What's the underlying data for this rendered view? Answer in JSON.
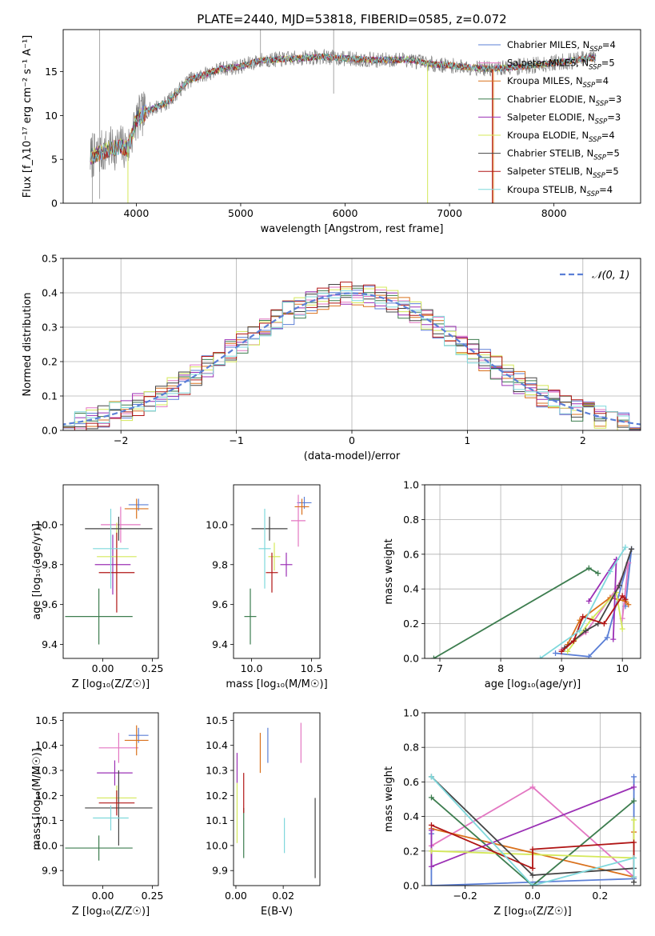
{
  "figure_title": "PLATE=2440, MJD=53818, FIBERID=0585, z=0.072",
  "colors": {
    "chabrier_miles": "#5b7fd6",
    "salpeter_miles": "#e377c2",
    "kroupa_miles": "#d9711c",
    "chabrier_elodie": "#3d7d4f",
    "salpeter_elodie": "#9b30b5",
    "kroupa_elodie": "#d4e85a",
    "chabrier_stelib": "#444444",
    "salpeter_stelib": "#b01515",
    "kroupa_stelib": "#7fd8dc",
    "normal_curve": "#5b7fd6"
  },
  "chart_data": [
    {
      "id": "spectrum",
      "type": "line",
      "xlabel": "wavelength [Angstrom, rest frame]",
      "ylabel": "Flux [f_λ10⁻¹⁷ erg cm⁻² s⁻¹ A⁻¹]",
      "xlim": [
        3300,
        8830
      ],
      "ylim": [
        0,
        19.8
      ],
      "xticks": [
        "4000",
        "5000",
        "6000",
        "7000",
        "8000"
      ],
      "yticks": [
        "0",
        "5",
        "10",
        "15"
      ],
      "legend_position": "right",
      "legend": [
        {
          "pre": "Chabrier MILES, N",
          "sub": "SSP",
          "post": "=4",
          "color_key": "chabrier_miles"
        },
        {
          "pre": "Salpeter MILES, N",
          "sub": "SSP",
          "post": "=5",
          "color_key": "salpeter_miles"
        },
        {
          "pre": "Kroupa MILES, N",
          "sub": "SSP",
          "post": "=4",
          "color_key": "kroupa_miles"
        },
        {
          "pre": "Chabrier ELODIE, N",
          "sub": "SSP",
          "post": "=3",
          "color_key": "chabrier_elodie"
        },
        {
          "pre": "Salpeter ELODIE, N",
          "sub": "SSP",
          "post": "=3",
          "color_key": "salpeter_elodie"
        },
        {
          "pre": "Kroupa ELODIE, N",
          "sub": "SSP",
          "post": "=4",
          "color_key": "kroupa_elodie"
        },
        {
          "pre": "Chabrier STELIB, N",
          "sub": "SSP",
          "post": "=5",
          "color_key": "chabrier_stelib"
        },
        {
          "pre": "Salpeter STELIB, N",
          "sub": "SSP",
          "post": "=5",
          "color_key": "salpeter_stelib"
        },
        {
          "pre": "Kroupa STELIB, N",
          "sub": "SSP",
          "post": "=4",
          "color_key": "kroupa_stelib"
        }
      ],
      "continuum": [
        [
          3560,
          5.2
        ],
        [
          3700,
          6.0
        ],
        [
          3850,
          6.5
        ],
        [
          3920,
          6.2
        ],
        [
          4000,
          9.5
        ],
        [
          4100,
          10.5
        ],
        [
          4300,
          11.5
        ],
        [
          4500,
          14.0
        ],
        [
          4800,
          15.3
        ],
        [
          5000,
          15.6
        ],
        [
          5200,
          16.3
        ],
        [
          5500,
          16.5
        ],
        [
          5800,
          16.7
        ],
        [
          6000,
          16.5
        ],
        [
          6300,
          16.3
        ],
        [
          6600,
          16.4
        ],
        [
          6800,
          15.9
        ],
        [
          7100,
          15.6
        ],
        [
          7400,
          15.3
        ],
        [
          7700,
          15.6
        ],
        [
          8000,
          16.0
        ],
        [
          8200,
          16.3
        ],
        [
          8400,
          16.6
        ]
      ],
      "drops": [
        {
          "x": 3920,
          "y_from": 6.5,
          "y_to": 0,
          "color_key": "kroupa_elodie"
        },
        {
          "x": 6790,
          "y_from": 16.0,
          "y_to": 0,
          "color_key": "kroupa_elodie"
        },
        {
          "x": 7410,
          "y_from": 15.3,
          "y_to": 0,
          "color_key": "salpeter_stelib"
        },
        {
          "x": 7420,
          "y_from": 15.3,
          "y_to": 0,
          "color_key": "kroupa_miles"
        }
      ]
    },
    {
      "id": "residuals",
      "type": "line",
      "xlabel": "(data-model)/error",
      "ylabel": "Normed distribution",
      "xlim": [
        -2.5,
        2.5
      ],
      "ylim": [
        0,
        0.5
      ],
      "xticks": [
        -2,
        -1,
        0,
        1,
        2
      ],
      "xtick_labels": [
        "−2",
        "−1",
        "0",
        "1",
        "2"
      ],
      "yticks": [
        0,
        0.1,
        0.2,
        0.3,
        0.4,
        0.5
      ],
      "ytick_labels": [
        "0.0",
        "0.1",
        "0.2",
        "0.3",
        "0.4",
        "0.5"
      ],
      "grid": true,
      "legend": [
        {
          "label": "𝒩(0, 1)",
          "color_key": "normal_curve",
          "style": "dashed"
        }
      ],
      "bin_width": 0.1,
      "bins_start": -2.5
    },
    {
      "id": "age_vs_Z",
      "type": "scatter",
      "xlabel": "Z [log₁₀(Z/Z☉)]",
      "ylabel": "age  [log₁₀(age/yr)]",
      "xlim": [
        -0.2,
        0.28
      ],
      "ylim": [
        9.33,
        10.2
      ],
      "xticks": [
        0.0,
        0.25
      ],
      "xtick_labels": [
        "0.00",
        "0.25"
      ],
      "yticks": [
        9.4,
        9.6,
        9.8,
        10.0
      ],
      "ytick_labels": [
        "9.4",
        "9.6",
        "9.8",
        "10.0"
      ],
      "points": [
        {
          "x": 0.18,
          "xerr": 0.05,
          "y": 10.1,
          "yerr": 0.03,
          "color_key": "chabrier_miles"
        },
        {
          "x": 0.09,
          "xerr": 0.1,
          "y": 10.0,
          "yerr": 0.09,
          "color_key": "salpeter_miles"
        },
        {
          "x": 0.17,
          "xerr": 0.06,
          "y": 10.08,
          "yerr": 0.05,
          "color_key": "kroupa_miles"
        },
        {
          "x": -0.02,
          "xerr": 0.17,
          "y": 9.54,
          "yerr": 0.14,
          "color_key": "chabrier_elodie"
        },
        {
          "x": 0.05,
          "xerr": 0.09,
          "y": 9.8,
          "yerr": 0.15,
          "color_key": "salpeter_elodie"
        },
        {
          "x": 0.07,
          "xerr": 0.1,
          "y": 9.84,
          "yerr": 0.17,
          "color_key": "kroupa_elodie"
        },
        {
          "x": 0.08,
          "xerr": 0.17,
          "y": 9.98,
          "yerr": 0.06,
          "color_key": "chabrier_stelib"
        },
        {
          "x": 0.07,
          "xerr": 0.09,
          "y": 9.76,
          "yerr": 0.2,
          "color_key": "salpeter_stelib"
        },
        {
          "x": 0.04,
          "xerr": 0.09,
          "y": 9.88,
          "yerr": 0.2,
          "color_key": "kroupa_stelib"
        }
      ]
    },
    {
      "id": "age_vs_mass",
      "type": "scatter",
      "xlabel": "mass [log₁₀(M/M☉)]",
      "ylabel": "",
      "xlim": [
        9.85,
        10.57
      ],
      "ylim": [
        9.33,
        10.2
      ],
      "xticks": [
        10.0,
        10.5
      ],
      "xtick_labels": [
        "10.0",
        "10.5"
      ],
      "yticks": [
        9.4,
        9.6,
        9.8,
        10.0
      ],
      "ytick_labels": [
        "9.4",
        "9.6",
        "9.8",
        "10.0"
      ],
      "points": [
        {
          "x": 10.44,
          "xerr": 0.06,
          "y": 10.11,
          "yerr": 0.03,
          "color_key": "chabrier_miles"
        },
        {
          "x": 10.39,
          "xerr": 0.06,
          "y": 10.02,
          "yerr": 0.13,
          "color_key": "salpeter_miles"
        },
        {
          "x": 10.42,
          "xerr": 0.06,
          "y": 10.09,
          "yerr": 0.04,
          "color_key": "kroupa_miles"
        },
        {
          "x": 9.99,
          "xerr": 0.05,
          "y": 9.54,
          "yerr": 0.14,
          "color_key": "chabrier_elodie"
        },
        {
          "x": 10.29,
          "xerr": 0.05,
          "y": 9.8,
          "yerr": 0.06,
          "color_key": "salpeter_elodie"
        },
        {
          "x": 10.19,
          "xerr": 0.05,
          "y": 9.84,
          "yerr": 0.07,
          "color_key": "kroupa_elodie"
        },
        {
          "x": 10.15,
          "xerr": 0.15,
          "y": 9.98,
          "yerr": 0.06,
          "color_key": "chabrier_stelib"
        },
        {
          "x": 10.17,
          "xerr": 0.05,
          "y": 9.76,
          "yerr": 0.1,
          "color_key": "salpeter_stelib"
        },
        {
          "x": 10.11,
          "xerr": 0.05,
          "y": 9.88,
          "yerr": 0.2,
          "color_key": "kroupa_stelib"
        }
      ]
    },
    {
      "id": "massweight_vs_age",
      "type": "line",
      "xlabel": "age  [log₁₀(age/yr)]",
      "ylabel": "mass weight",
      "xlim": [
        6.75,
        10.3
      ],
      "ylim": [
        0,
        1
      ],
      "xticks": [
        7,
        8,
        9,
        10
      ],
      "xtick_labels": [
        "7",
        "8",
        "9",
        "10"
      ],
      "yticks": [
        0,
        0.2,
        0.4,
        0.6,
        0.8,
        1.0
      ],
      "ytick_labels": [
        "0.0",
        "0.2",
        "0.4",
        "0.6",
        "0.8",
        "1.0"
      ],
      "grid": true,
      "series": [
        {
          "color_key": "chabrier_elodie",
          "x": [
            6.9,
            9.45,
            9.6
          ],
          "y": [
            0.0,
            0.52,
            0.49
          ]
        },
        {
          "color_key": "chabrier_miles",
          "x": [
            8.9,
            9.45,
            9.75,
            10.15,
            10.05
          ],
          "y": [
            0.03,
            0.01,
            0.12,
            0.63,
            0.3
          ]
        },
        {
          "color_key": "salpeter_miles",
          "x": [
            9.0,
            9.4,
            9.9,
            10.1,
            10.0
          ],
          "y": [
            0.05,
            0.15,
            0.4,
            0.55,
            0.23
          ]
        },
        {
          "color_key": "kroupa_miles",
          "x": [
            9.1,
            9.3,
            9.8,
            10.05,
            10.1
          ],
          "y": [
            0.08,
            0.22,
            0.35,
            0.33,
            0.31
          ]
        },
        {
          "color_key": "salpeter_elodie",
          "x": [
            9.45,
            9.9,
            9.85
          ],
          "y": [
            0.33,
            0.57,
            0.11
          ]
        },
        {
          "color_key": "kroupa_elodie",
          "x": [
            9.1,
            9.5,
            9.9,
            10.0
          ],
          "y": [
            0.04,
            0.23,
            0.38,
            0.17
          ]
        },
        {
          "color_key": "chabrier_stelib",
          "x": [
            9.05,
            9.4,
            9.6,
            9.95,
            10.15
          ],
          "y": [
            0.06,
            0.16,
            0.2,
            0.42,
            0.63
          ]
        },
        {
          "color_key": "salpeter_stelib",
          "x": [
            9.0,
            9.2,
            9.35,
            9.7,
            10.0,
            10.05
          ],
          "y": [
            0.04,
            0.1,
            0.24,
            0.2,
            0.36,
            0.34
          ]
        },
        {
          "color_key": "kroupa_stelib",
          "x": [
            8.65,
            9.3,
            9.8,
            10.05
          ],
          "y": [
            0.0,
            0.16,
            0.5,
            0.64
          ]
        }
      ]
    },
    {
      "id": "mass_vs_Z",
      "type": "scatter",
      "xlabel": "Z [log₁₀(Z/Z☉)]",
      "ylabel": "mass [log₁₀(M/M☉)]",
      "xlim": [
        -0.2,
        0.28
      ],
      "ylim": [
        9.84,
        10.53
      ],
      "xticks": [
        0.0,
        0.25
      ],
      "xtick_labels": [
        "0.00",
        "0.25"
      ],
      "yticks": [
        9.9,
        10.0,
        10.1,
        10.2,
        10.3,
        10.4,
        10.5
      ],
      "ytick_labels": [
        "9.9",
        "10.0",
        "10.1",
        "10.2",
        "10.3",
        "10.4",
        "10.5"
      ],
      "points": [
        {
          "x": 0.18,
          "xerr": 0.05,
          "y": 10.44,
          "yerr": 0.03,
          "color_key": "chabrier_miles"
        },
        {
          "x": 0.08,
          "xerr": 0.1,
          "y": 10.39,
          "yerr": 0.06,
          "color_key": "salpeter_miles"
        },
        {
          "x": 0.17,
          "xerr": 0.06,
          "y": 10.42,
          "yerr": 0.06,
          "color_key": "kroupa_miles"
        },
        {
          "x": -0.02,
          "xerr": 0.17,
          "y": 9.99,
          "yerr": 0.05,
          "color_key": "chabrier_elodie"
        },
        {
          "x": 0.06,
          "xerr": 0.09,
          "y": 10.29,
          "yerr": 0.05,
          "color_key": "salpeter_elodie"
        },
        {
          "x": 0.07,
          "xerr": 0.1,
          "y": 10.19,
          "yerr": 0.05,
          "color_key": "kroupa_elodie"
        },
        {
          "x": 0.08,
          "xerr": 0.17,
          "y": 10.15,
          "yerr": 0.15,
          "color_key": "chabrier_stelib"
        },
        {
          "x": 0.07,
          "xerr": 0.09,
          "y": 10.17,
          "yerr": 0.05,
          "color_key": "salpeter_stelib"
        },
        {
          "x": 0.04,
          "xerr": 0.09,
          "y": 10.11,
          "yerr": 0.05,
          "color_key": "kroupa_stelib"
        }
      ]
    },
    {
      "id": "mass_vs_ebv",
      "type": "scatter",
      "xlabel": "E(B-V)",
      "ylabel": "",
      "xlim": [
        -0.001,
        0.0355
      ],
      "ylim": [
        9.84,
        10.53
      ],
      "xticks": [
        0.0,
        0.02
      ],
      "xtick_labels": [
        "0.00",
        "0.02"
      ],
      "yticks": [
        9.9,
        10.0,
        10.1,
        10.2,
        10.3,
        10.4,
        10.5
      ],
      "ytick_labels": [
        "9.9",
        "10.0",
        "10.1",
        "10.2",
        "10.3",
        "10.4",
        "10.5"
      ],
      "points": [
        {
          "x": 0.0135,
          "y": 10.4,
          "yerr": 0.07,
          "color_key": "chabrier_miles"
        },
        {
          "x": 0.0275,
          "y": 10.41,
          "yerr": 0.08,
          "color_key": "salpeter_miles"
        },
        {
          "x": 0.0103,
          "y": 10.37,
          "yerr": 0.08,
          "color_key": "kroupa_miles"
        },
        {
          "x": 0.0033,
          "y": 10.05,
          "yerr": 0.1,
          "color_key": "chabrier_elodie"
        },
        {
          "x": 0.0005,
          "y": 10.31,
          "yerr": 0.06,
          "color_key": "salpeter_elodie"
        },
        {
          "x": 0.0005,
          "y": 10.13,
          "yerr": 0.12,
          "color_key": "kroupa_elodie"
        },
        {
          "x": 0.0335,
          "y": 10.03,
          "yerr": 0.16,
          "color_key": "chabrier_stelib"
        },
        {
          "x": 0.0033,
          "y": 10.21,
          "yerr": 0.08,
          "color_key": "salpeter_stelib"
        },
        {
          "x": 0.0205,
          "y": 10.04,
          "yerr": 0.07,
          "color_key": "kroupa_stelib"
        }
      ]
    },
    {
      "id": "massweight_vs_Z",
      "type": "line",
      "xlabel": "Z [log₁₀(Z/Z☉)]",
      "ylabel": "mass weight",
      "xlim": [
        -0.32,
        0.32
      ],
      "ylim": [
        0,
        1
      ],
      "xticks": [
        -0.2,
        0.0,
        0.2
      ],
      "xtick_labels": [
        "−0.2",
        "0.0",
        "0.2"
      ],
      "yticks": [
        0,
        0.2,
        0.4,
        0.6,
        0.8,
        1.0
      ],
      "ytick_labels": [
        "0.0",
        "0.2",
        "0.4",
        "0.6",
        "0.8",
        "1.0"
      ],
      "grid": true,
      "series": [
        {
          "color_key": "chabrier_miles",
          "x": [
            -0.3,
            -0.3,
            0.3,
            0.3
          ],
          "y": [
            0.3,
            0.0,
            0.04,
            0.63
          ]
        },
        {
          "color_key": "salpeter_miles",
          "x": [
            -0.3,
            0.0,
            0.3
          ],
          "y": [
            0.23,
            0.57,
            0.05
          ]
        },
        {
          "color_key": "kroupa_miles",
          "x": [
            -0.3,
            0.3,
            0.3
          ],
          "y": [
            0.33,
            0.05,
            0.31
          ]
        },
        {
          "color_key": "chabrier_elodie",
          "x": [
            -0.3,
            0.0,
            0.3
          ],
          "y": [
            0.51,
            0.0,
            0.49
          ]
        },
        {
          "color_key": "salpeter_elodie",
          "x": [
            -0.3,
            -0.3,
            0.3
          ],
          "y": [
            0.32,
            0.11,
            0.57
          ]
        },
        {
          "color_key": "kroupa_elodie",
          "x": [
            -0.3,
            0.3,
            0.3
          ],
          "y": [
            0.2,
            0.16,
            0.38
          ]
        },
        {
          "color_key": "chabrier_stelib",
          "x": [
            -0.3,
            0.0,
            0.3,
            0.3
          ],
          "y": [
            0.63,
            0.06,
            0.1,
            0.02
          ]
        },
        {
          "color_key": "salpeter_stelib",
          "x": [
            -0.3,
            0.0,
            0.0,
            0.3,
            0.3
          ],
          "y": [
            0.35,
            0.1,
            0.21,
            0.25,
            0.05
          ]
        },
        {
          "color_key": "kroupa_stelib",
          "x": [
            -0.3,
            0.0,
            0.3,
            0.3
          ],
          "y": [
            0.63,
            0.0,
            0.16,
            0.05
          ]
        }
      ]
    }
  ]
}
